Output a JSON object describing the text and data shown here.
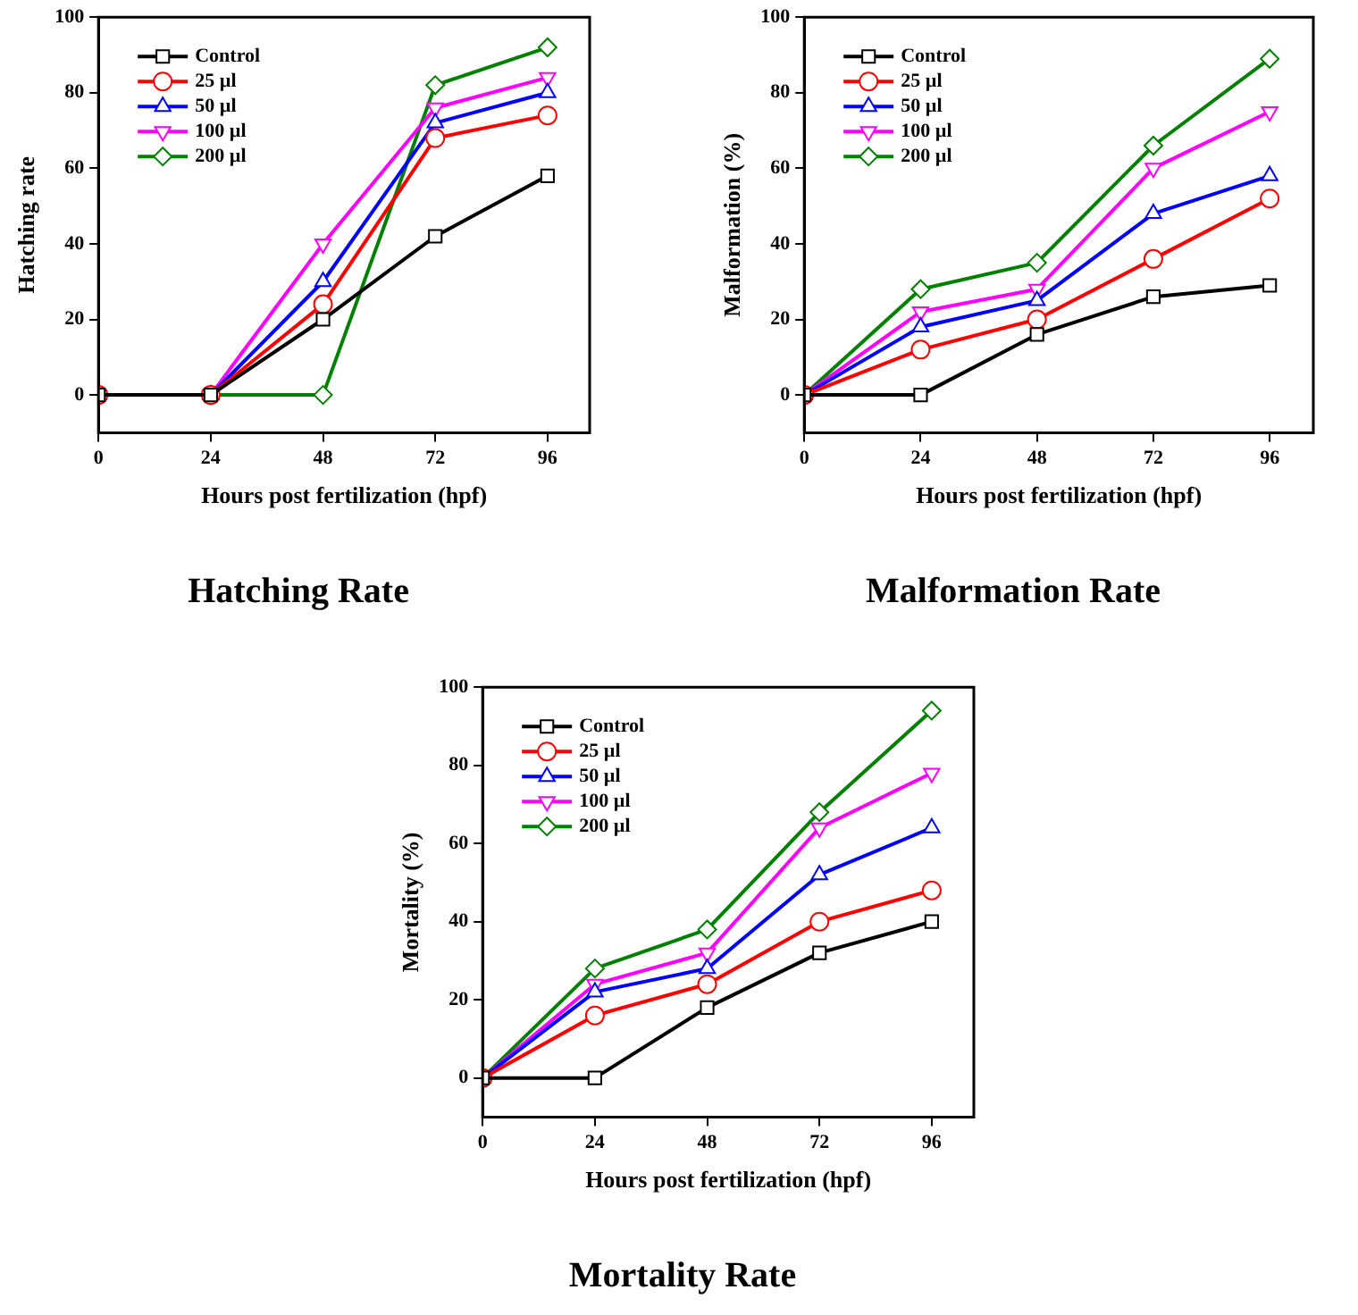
{
  "chart_data": [
    {
      "type": "line",
      "title": "Hatching Rate",
      "xlabel": "Hours post fertilization (hpf)",
      "ylabel": "Hatching rate",
      "x": [
        0,
        24,
        48,
        72,
        96
      ],
      "xlim": [
        0,
        105
      ],
      "xticks": [
        0,
        24,
        48,
        72,
        96
      ],
      "ylim": [
        -10,
        100
      ],
      "yticks": [
        0,
        20,
        40,
        60,
        80,
        100
      ],
      "grid": false,
      "legend": "top left",
      "series": [
        {
          "name": "Control",
          "color": "#000000",
          "marker": "square",
          "values": [
            0,
            0,
            20,
            42,
            58
          ]
        },
        {
          "name": "25 µl",
          "color": "#ff0000",
          "marker": "circle",
          "values": [
            0,
            0,
            24,
            68,
            74
          ]
        },
        {
          "name": "50 µl",
          "color": "#0000ff",
          "marker": "triangle",
          "values": [
            0,
            0,
            30,
            72,
            80
          ]
        },
        {
          "name": "100 µl",
          "color": "#ff00ff",
          "marker": "triangle_down",
          "values": [
            0,
            0,
            40,
            76,
            84
          ]
        },
        {
          "name": "200 µl",
          "color": "#008000",
          "marker": "diamond",
          "values": [
            0,
            0,
            0,
            82,
            92
          ]
        }
      ]
    },
    {
      "type": "line",
      "title": "Malformation Rate",
      "xlabel": "Hours post fertilization (hpf)",
      "ylabel": "Malformation (%)",
      "x": [
        0,
        24,
        48,
        72,
        96
      ],
      "xlim": [
        0,
        105
      ],
      "xticks": [
        0,
        24,
        48,
        72,
        96
      ],
      "ylim": [
        -10,
        100
      ],
      "yticks": [
        0,
        20,
        40,
        60,
        80,
        100
      ],
      "grid": false,
      "legend": "top left",
      "series": [
        {
          "name": "Control",
          "color": "#000000",
          "marker": "square",
          "values": [
            0,
            0,
            16,
            26,
            29
          ]
        },
        {
          "name": "25 µl",
          "color": "#ff0000",
          "marker": "circle",
          "values": [
            0,
            12,
            20,
            36,
            52
          ]
        },
        {
          "name": "50 µl",
          "color": "#0000ff",
          "marker": "triangle",
          "values": [
            0,
            18,
            25,
            48,
            58
          ]
        },
        {
          "name": "100 µl",
          "color": "#ff00ff",
          "marker": "triangle_down",
          "values": [
            0,
            22,
            28,
            60,
            75
          ]
        },
        {
          "name": "200 µl",
          "color": "#008000",
          "marker": "diamond",
          "values": [
            0,
            28,
            35,
            66,
            89
          ]
        }
      ]
    },
    {
      "type": "line",
      "title": "Mortality Rate",
      "xlabel": "Hours post fertilization (hpf)",
      "ylabel": "Mortality (%)",
      "x": [
        0,
        24,
        48,
        72,
        96
      ],
      "xlim": [
        0,
        105
      ],
      "xticks": [
        0,
        24,
        48,
        72,
        96
      ],
      "ylim": [
        -10,
        100
      ],
      "yticks": [
        0,
        20,
        40,
        60,
        80,
        100
      ],
      "grid": false,
      "legend": "top left",
      "series": [
        {
          "name": "Control",
          "color": "#000000",
          "marker": "square",
          "values": [
            0,
            0,
            18,
            32,
            40
          ]
        },
        {
          "name": "25 µl",
          "color": "#ff0000",
          "marker": "circle",
          "values": [
            0,
            16,
            24,
            40,
            48
          ]
        },
        {
          "name": "50 µl",
          "color": "#0000ff",
          "marker": "triangle",
          "values": [
            0,
            22,
            28,
            52,
            64
          ]
        },
        {
          "name": "100 µl",
          "color": "#ff00ff",
          "marker": "triangle_down",
          "values": [
            0,
            24,
            32,
            64,
            78
          ]
        },
        {
          "name": "200 µl",
          "color": "#008000",
          "marker": "diamond",
          "values": [
            0,
            28,
            38,
            68,
            94
          ]
        }
      ]
    }
  ]
}
